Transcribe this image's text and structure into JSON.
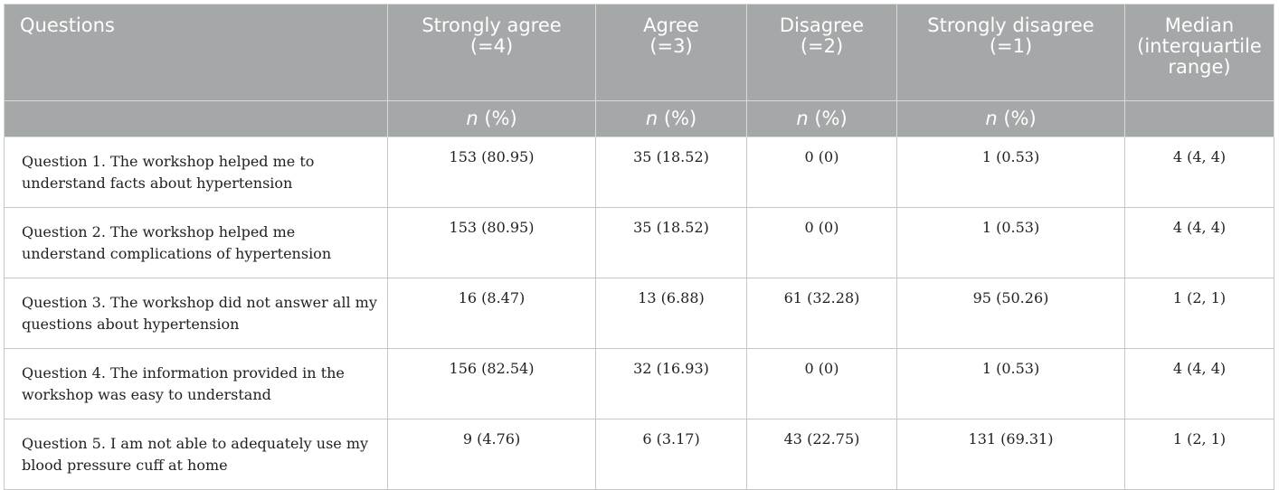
{
  "header": {
    "questions": "Questions",
    "strongly_agree_1": "Strongly agree",
    "strongly_agree_2": "(=4)",
    "agree_1": "Agree",
    "agree_2": "(=3)",
    "disagree_1": "Disagree",
    "disagree_2": "(=2)",
    "strongly_disagree_1": "Strongly disagree",
    "strongly_disagree_2": "(=1)",
    "median_1": "Median",
    "median_2": "(interquartile",
    "median_3": "range)",
    "n_label": "n",
    "pct_label": " (%)"
  },
  "rows": [
    {
      "question": "Question 1. The workshop helped me to understand facts about hypertension",
      "strongly_agree": "153 (80.95)",
      "agree": "35 (18.52)",
      "disagree": "0 (0)",
      "strongly_disagree": "1 (0.53)",
      "median": "4 (4, 4)"
    },
    {
      "question": "Question 2. The workshop helped me understand complications of hypertension",
      "strongly_agree": "153 (80.95)",
      "agree": "35 (18.52)",
      "disagree": "0 (0)",
      "strongly_disagree": "1 (0.53)",
      "median": "4 (4, 4)"
    },
    {
      "question": "Question 3. The workshop did not answer all my questions about hypertension",
      "strongly_agree": "16 (8.47)",
      "agree": "13 (6.88)",
      "disagree": "61 (32.28)",
      "strongly_disagree": "95 (50.26)",
      "median": "1 (2, 1)"
    },
    {
      "question": "Question 4. The information provided in the workshop was easy to understand",
      "strongly_agree": "156 (82.54)",
      "agree": "32 (16.93)",
      "disagree": "0 (0)",
      "strongly_disagree": "1 (0.53)",
      "median": "4 (4, 4)"
    },
    {
      "question": "Question 5. I am not able to adequately use my blood pressure cuff at home",
      "strongly_agree": "9 (4.76)",
      "agree": "6 (3.17)",
      "disagree": "43 (22.75)",
      "strongly_disagree": "131 (69.31)",
      "median": "1 (2, 1)"
    }
  ]
}
